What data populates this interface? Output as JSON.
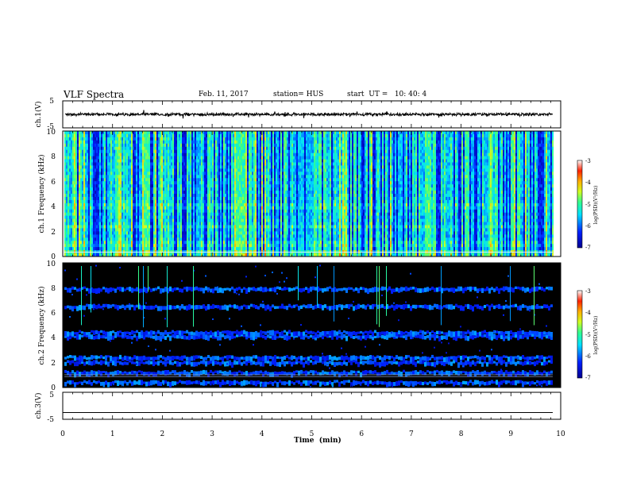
{
  "header": {
    "title": "VLF Spectra",
    "date": "Feb. 11, 2017",
    "station": "station= HUS",
    "start": "start  UT =   10: 40: 4"
  },
  "chart_data": [
    {
      "type": "line",
      "panel": "ch1-waveform",
      "ylabel": "ch.1(V)",
      "yticks": [
        "5",
        "-5"
      ],
      "ylim": [
        -5,
        5
      ],
      "xlim": [
        0,
        10
      ]
    },
    {
      "type": "heatmap",
      "panel": "ch1-spectrogram",
      "ylabel": "ch.1 Frequency (kHz)",
      "yticks": [
        "0",
        "2",
        "4",
        "6",
        "8",
        "10"
      ],
      "ylim": [
        0,
        10
      ],
      "xlim": [
        0,
        10
      ],
      "colorbar": {
        "label": "log(PSD)(V²/Hz)",
        "ticks": [
          "-3",
          "-4",
          "-5",
          "-6",
          "-7"
        ],
        "range": [
          -7,
          -3
        ]
      },
      "description_level": "high broadband activity"
    },
    {
      "type": "heatmap",
      "panel": "ch2-spectrogram",
      "ylabel": "ch.2 Frequency (kHz)",
      "yticks": [
        "0",
        "2",
        "4",
        "6",
        "8",
        "10"
      ],
      "ylim": [
        0,
        10
      ],
      "xlim": [
        0,
        10
      ],
      "colorbar": {
        "label": "log(PSD)(V²/Hz)",
        "ticks": [
          "-3",
          "-4",
          "-5",
          "-6",
          "-7"
        ],
        "range": [
          -7,
          -3
        ]
      },
      "bands_khz": [
        0.3,
        1.1,
        1.9,
        2.3,
        4.0,
        4.3,
        6.4,
        7.8
      ]
    },
    {
      "type": "line",
      "panel": "ch3-waveform",
      "ylabel": "ch.3(V)",
      "yticks": [
        "5",
        "-5"
      ],
      "ylim": [
        -5,
        5
      ],
      "xlim": [
        0,
        10
      ],
      "values": [
        -2.5
      ]
    }
  ],
  "xaxis": {
    "label": "Time  (min)",
    "ticks": [
      "0",
      "1",
      "2",
      "3",
      "4",
      "5",
      "6",
      "7",
      "8",
      "9",
      "10"
    ],
    "range": [
      0,
      10
    ],
    "data_end": 9.84
  },
  "colors": {
    "background": "#000000",
    "line": "#000000"
  }
}
